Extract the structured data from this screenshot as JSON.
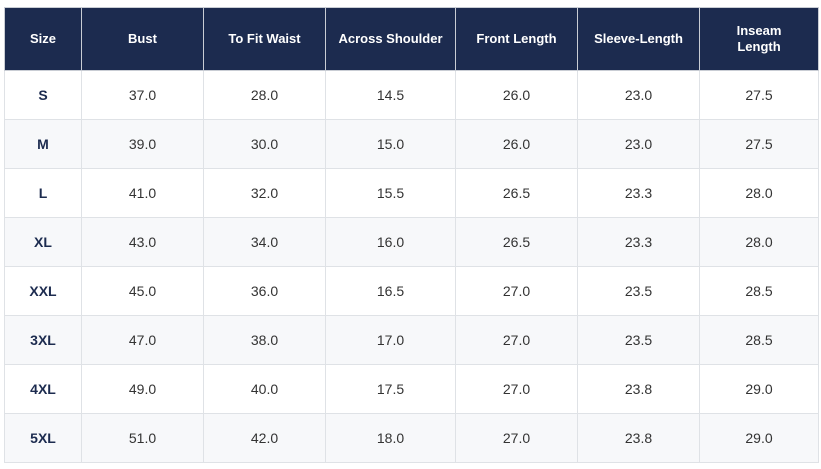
{
  "size_chart": {
    "headers": [
      "Size",
      "Bust",
      "To Fit Waist",
      "Across Shoulder",
      "Front Length",
      "Sleeve-Length",
      "Inseam Length"
    ],
    "rows": [
      [
        "S",
        "37.0",
        "28.0",
        "14.5",
        "26.0",
        "23.0",
        "27.5"
      ],
      [
        "M",
        "39.0",
        "30.0",
        "15.0",
        "26.0",
        "23.0",
        "27.5"
      ],
      [
        "L",
        "41.0",
        "32.0",
        "15.5",
        "26.5",
        "23.3",
        "28.0"
      ],
      [
        "XL",
        "43.0",
        "34.0",
        "16.0",
        "26.5",
        "23.3",
        "28.0"
      ],
      [
        "XXL",
        "45.0",
        "36.0",
        "16.5",
        "27.0",
        "23.5",
        "28.5"
      ],
      [
        "3XL",
        "47.0",
        "38.0",
        "17.0",
        "27.0",
        "23.5",
        "28.5"
      ],
      [
        "4XL",
        "49.0",
        "40.0",
        "17.5",
        "27.0",
        "23.8",
        "29.0"
      ],
      [
        "5XL",
        "51.0",
        "42.0",
        "18.0",
        "27.0",
        "23.8",
        "29.0"
      ]
    ]
  },
  "colors": {
    "header_bg": "#1c2b4f",
    "header_text": "#ffffff",
    "size_text": "#1c2b4f",
    "cell_text": "#333333",
    "stripe": "#f7f8fa",
    "border": "#dfe2e6"
  }
}
